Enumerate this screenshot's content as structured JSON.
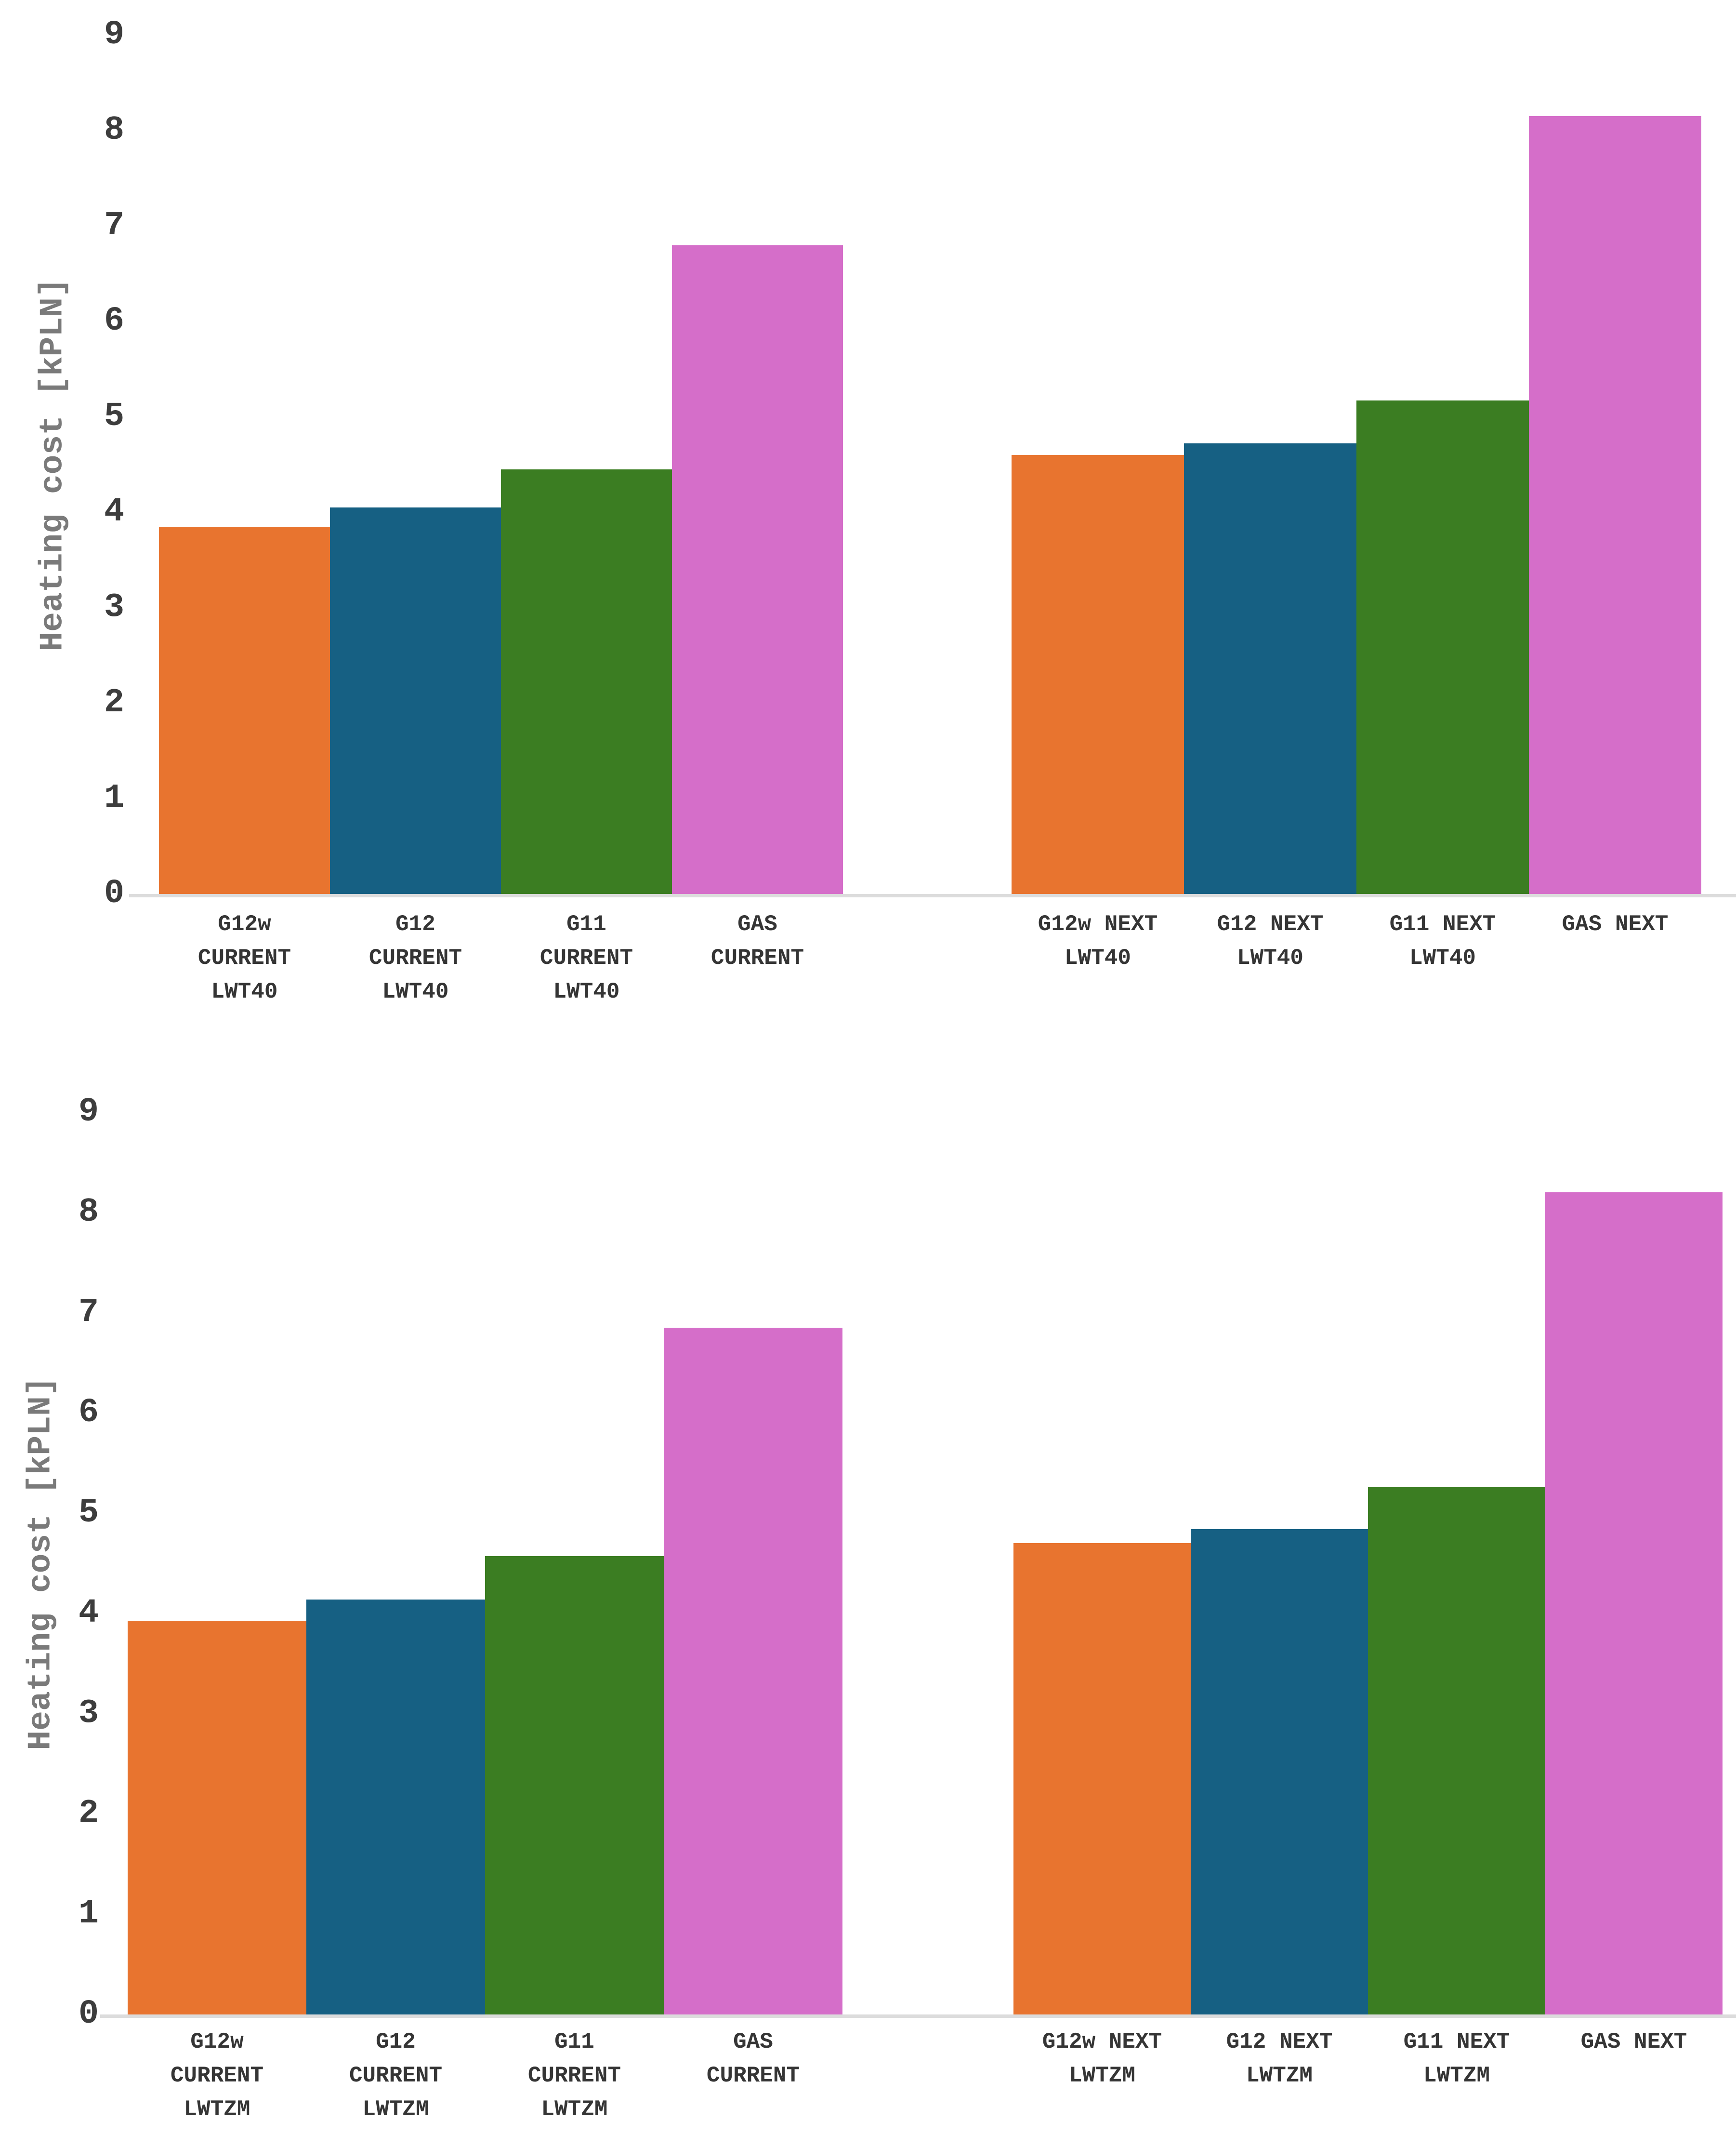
{
  "figure": {
    "background": "#ffffff",
    "num_charts": 2
  },
  "colors": {
    "orange": "#E8742F",
    "blue": "#166083",
    "green": "#3B7D22",
    "magenta": "#D56EC9",
    "axis_line": "#dcdcdc",
    "tick_text": "#3d3d3d",
    "axis_title_text": "#7a7a7a"
  },
  "chart_data": [
    {
      "type": "bar",
      "title": "",
      "ylabel": "Heating cost [kPLN]",
      "xlabel": "",
      "ylim": [
        0,
        9
      ],
      "yticks": [
        0,
        1,
        2,
        3,
        4,
        5,
        6,
        7,
        8,
        9
      ],
      "grid": false,
      "legend": null,
      "categories": [
        "G12w\nCURRENT\nLWT40",
        "G12\nCURRENT\nLWT40",
        "G11\nCURRENT\nLWT40",
        "GAS\nCURRENT",
        "G12w NEXT\nLWT40",
        "G12 NEXT\nLWT40",
        "G11 NEXT\nLWT40",
        "GAS NEXT"
      ],
      "values": [
        3.85,
        4.05,
        4.45,
        6.8,
        4.6,
        4.72,
        5.17,
        8.15
      ],
      "bar_colors": [
        "#E8742F",
        "#166083",
        "#3B7D22",
        "#D56EC9",
        "#E8742F",
        "#166083",
        "#3B7D22",
        "#D56EC9"
      ],
      "group_gap_after_index": 3
    },
    {
      "type": "bar",
      "title": "",
      "ylabel": "Heating cost [kPLN]",
      "xlabel": "",
      "ylim": [
        0,
        9
      ],
      "yticks": [
        0,
        1,
        2,
        3,
        4,
        5,
        6,
        7,
        8,
        9
      ],
      "grid": false,
      "legend": null,
      "categories": [
        "G12w\nCURRENT\nLWTZM",
        "G12\nCURRENT\nLWTZM",
        "G11\nCURRENT\nLWTZM",
        "GAS\nCURRENT",
        "G12w NEXT\nLWTZM",
        "G12 NEXT\nLWTZM",
        "G11 NEXT\nLWTZM",
        "GAS NEXT"
      ],
      "values": [
        3.93,
        4.14,
        4.57,
        6.85,
        4.7,
        4.84,
        5.26,
        8.2
      ],
      "bar_colors": [
        "#E8742F",
        "#166083",
        "#3B7D22",
        "#D56EC9",
        "#E8742F",
        "#166083",
        "#3B7D22",
        "#D56EC9"
      ],
      "group_gap_after_index": 3
    }
  ]
}
